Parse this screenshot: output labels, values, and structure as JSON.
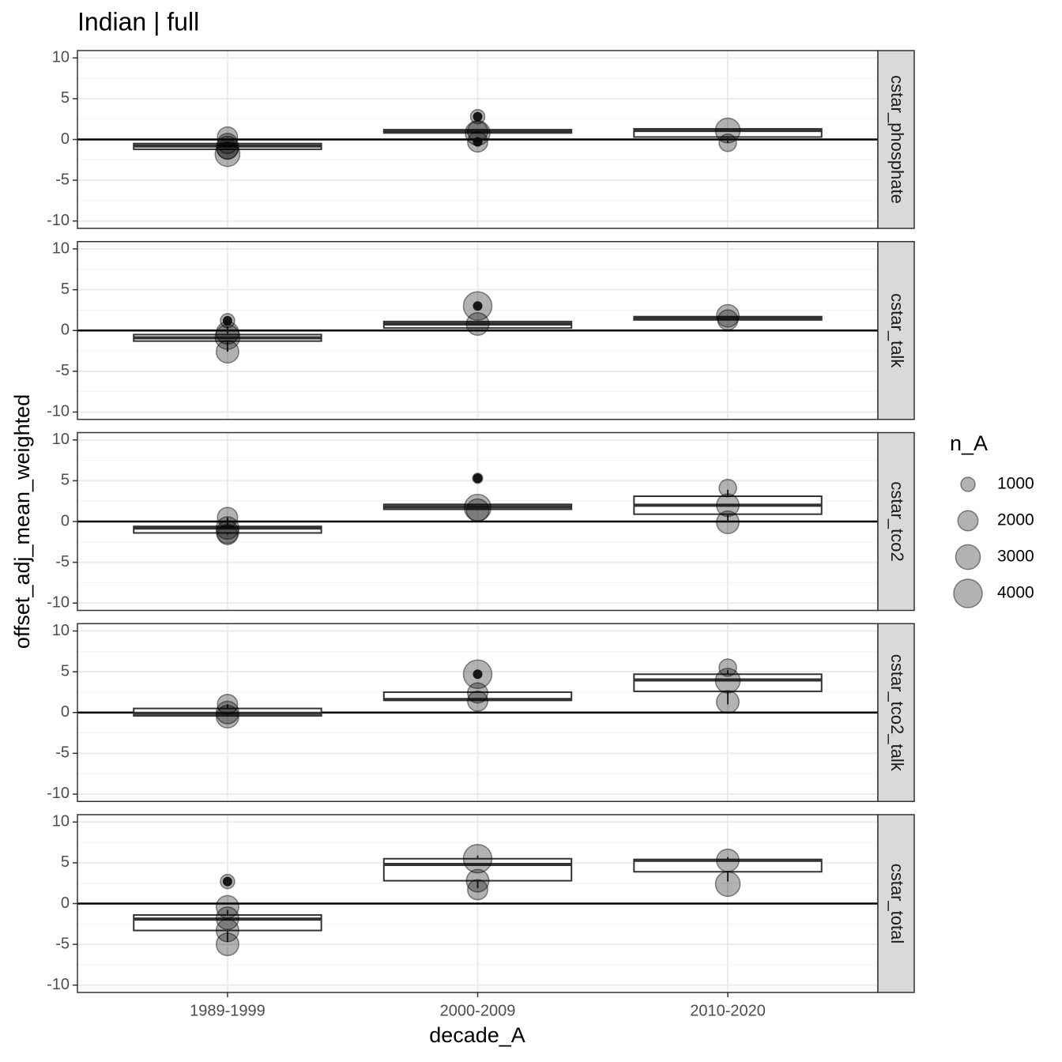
{
  "chart_data": {
    "type": "box",
    "title": "Indian | full",
    "xlabel": "decade_A",
    "ylabel": "offset_adj_mean_weighted",
    "categories": [
      "1989-1999",
      "2000-2009",
      "2010-2020"
    ],
    "ylim": [
      -10.9,
      10.9
    ],
    "yticks": [
      -10,
      -5,
      0,
      5,
      10
    ],
    "grid": true,
    "hline": 0,
    "size_legend": {
      "title": "n_A",
      "values": [
        1000,
        2000,
        3000,
        4000
      ]
    },
    "panels": [
      {
        "name": "cstar_phosphate",
        "boxes": [
          {
            "low": -1.3,
            "q1": -1.2,
            "median": -0.8,
            "q3": -0.5,
            "high": -0.3,
            "outliers": [],
            "points": [
              0.3,
              -0.5,
              -1.0,
              -1.2,
              -1.8
            ],
            "sizes": [
              2000,
              2000,
              2500,
              2000,
              3000
            ]
          },
          {
            "low": 0.8,
            "q1": 0.8,
            "median": 1.0,
            "q3": 1.2,
            "high": 1.2,
            "outliers": [
              2.8,
              -0.3
            ],
            "points": [
              2.8,
              1.0,
              0.8,
              -0.3
            ],
            "sizes": [
              1000,
              2000,
              3000,
              2000
            ]
          },
          {
            "low": -0.4,
            "q1": 0.3,
            "median": 1.1,
            "q3": 1.3,
            "high": 1.3,
            "outliers": [],
            "points": [
              1.1,
              -0.4
            ],
            "sizes": [
              3000,
              1500
            ]
          }
        ]
      },
      {
        "name": "cstar_talk",
        "boxes": [
          {
            "low": -2.6,
            "q1": -1.3,
            "median": -0.9,
            "q3": -0.5,
            "high": 0.5,
            "outliers": [
              1.2
            ],
            "points": [
              1.2,
              -0.3,
              -0.8,
              -2.6
            ],
            "sizes": [
              1000,
              2500,
              3000,
              2500
            ]
          },
          {
            "low": 0.3,
            "q1": 0.3,
            "median": 0.8,
            "q3": 1.1,
            "high": 1.1,
            "outliers": [
              3.0
            ],
            "points": [
              3.0,
              0.8
            ],
            "sizes": [
              4000,
              2500
            ]
          },
          {
            "low": 1.3,
            "q1": 1.3,
            "median": 1.5,
            "q3": 1.7,
            "high": 1.8,
            "outliers": [],
            "points": [
              1.8,
              1.3
            ],
            "sizes": [
              2500,
              2000
            ]
          }
        ]
      },
      {
        "name": "cstar_tco2",
        "boxes": [
          {
            "low": -1.6,
            "q1": -1.4,
            "median": -0.8,
            "q3": -0.6,
            "high": 0.5,
            "outliers": [],
            "points": [
              0.5,
              -0.8,
              -1.3,
              -1.6
            ],
            "sizes": [
              2000,
              2500,
              2500,
              2000
            ]
          },
          {
            "low": 1.4,
            "q1": 1.5,
            "median": 1.8,
            "q3": 2.1,
            "high": 2.1,
            "outliers": [
              5.3
            ],
            "points": [
              5.3,
              1.7,
              1.4
            ],
            "sizes": [
              500,
              3500,
              2500
            ]
          },
          {
            "low": 0.0,
            "q1": 0.9,
            "median": 2.0,
            "q3": 3.1,
            "high": 3.9,
            "outliers": [],
            "points": [
              4.1,
              2.0,
              -0.1
            ],
            "sizes": [
              1500,
              2500,
              2500
            ]
          }
        ]
      },
      {
        "name": "cstar_tco2_talk",
        "boxes": [
          {
            "low": -0.5,
            "q1": -0.4,
            "median": -0.1,
            "q3": 0.5,
            "high": 1.0,
            "outliers": [],
            "points": [
              1.0,
              0.0,
              -0.5
            ],
            "sizes": [
              2000,
              2500,
              2500
            ]
          },
          {
            "low": 1.4,
            "q1": 1.5,
            "median": 1.6,
            "q3": 2.5,
            "high": 2.5,
            "outliers": [
              4.7
            ],
            "points": [
              4.7,
              2.4,
              1.4
            ],
            "sizes": [
              4000,
              2000,
              2000
            ]
          },
          {
            "low": 1.0,
            "q1": 2.6,
            "median": 4.0,
            "q3": 4.7,
            "high": 5.2,
            "outliers": [],
            "points": [
              5.5,
              3.9,
              1.3
            ],
            "sizes": [
              1500,
              3000,
              2500
            ]
          }
        ]
      },
      {
        "name": "cstar_total",
        "boxes": [
          {
            "low": -4.7,
            "q1": -3.3,
            "median": -1.9,
            "q3": -1.4,
            "high": -0.8,
            "outliers": [
              2.7
            ],
            "points": [
              2.7,
              -0.4,
              -1.8,
              -3.3,
              -5.0
            ],
            "sizes": [
              1000,
              2500,
              2500,
              2500,
              2500
            ]
          },
          {
            "low": 1.9,
            "q1": 2.8,
            "median": 4.8,
            "q3": 5.5,
            "high": 5.9,
            "outliers": [],
            "points": [
              5.5,
              2.8,
              1.7
            ],
            "sizes": [
              4000,
              2500,
              2000
            ]
          },
          {
            "low": 2.7,
            "q1": 3.9,
            "median": 5.3,
            "q3": 5.4,
            "high": 5.7,
            "outliers": [],
            "points": [
              5.3,
              2.4
            ],
            "sizes": [
              2500,
              3000
            ]
          }
        ]
      }
    ]
  }
}
